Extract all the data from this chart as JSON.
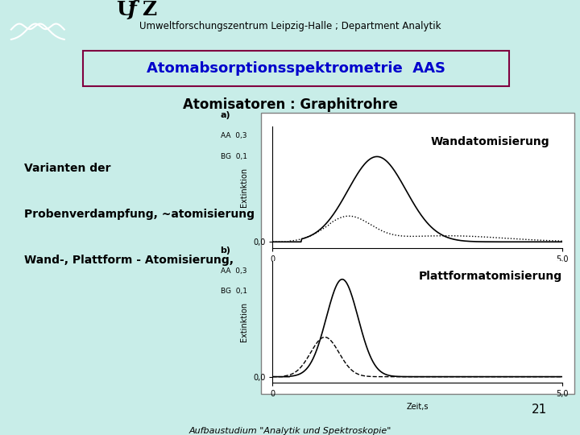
{
  "bg_color": "#c8ede8",
  "header_text": "Umweltforschungszentrum Leipzig-Halle ; Department Analytik",
  "title_box_text": "Atomabsorptionsspektrometrie  AAS",
  "title_box_color": "#800040",
  "title_text_color": "#0000cc",
  "subtitle_text": "Atomisatoren : Graphitrohre",
  "left_lines": [
    "Varianten der",
    "Probenverdampfung, ~atomisierung",
    "Wand-, Plattform - Atomisierung,"
  ],
  "plot_a_label": "a)",
  "plot_a_title": "Wandatomisierung",
  "plot_b_label": "b)",
  "plot_b_title": "Plattformatomisierung",
  "ylabel": "Extinktion",
  "xlabel": "Zeit,s",
  "aa_label": "AA  0,3",
  "bg_label": "BG  0,1",
  "page_number": "21",
  "footer_text": "Aufbaustudium \"Analytik und Spektroskopie\"",
  "logo_box_color": "#000080"
}
